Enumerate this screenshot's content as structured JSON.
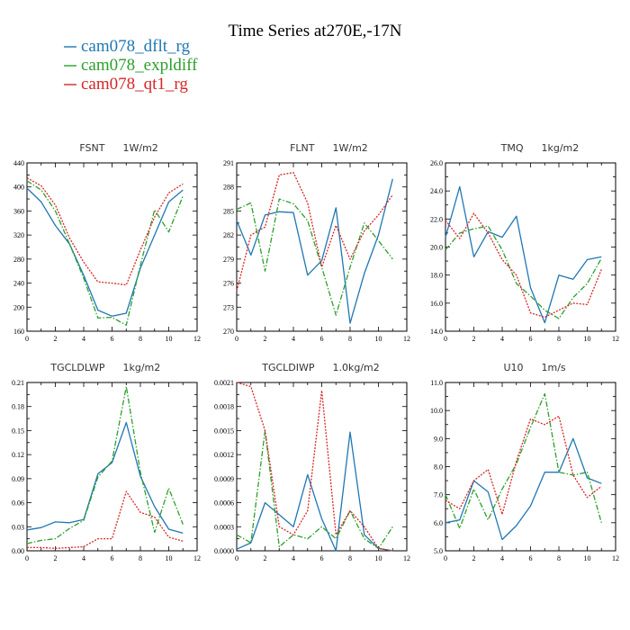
{
  "title": "Time Series at270E,-17N",
  "legend": [
    {
      "name": "cam078_dflt_rg",
      "color": "#1f77b4",
      "dash": "solid"
    },
    {
      "name": "cam078_expldiff",
      "color": "#2ca02c",
      "dash": "dashdot"
    },
    {
      "name": "cam078_qt1_rg",
      "color": "#d62728",
      "dash": "dotted"
    }
  ],
  "chart_data": [
    {
      "type": "line",
      "title_var": "FSNT",
      "title_unit": "1W/m2",
      "x": [
        0,
        1,
        2,
        3,
        4,
        5,
        6,
        7,
        8,
        9,
        10,
        11
      ],
      "xlim": [
        0,
        12
      ],
      "xticks": [
        0,
        2,
        4,
        6,
        8,
        10,
        12
      ],
      "xtick_labels": [
        "0",
        "2",
        "4",
        "6",
        "8",
        "10",
        "12"
      ],
      "ylim": [
        160,
        440
      ],
      "yticks": [
        160,
        200,
        240,
        280,
        320,
        360,
        400,
        440
      ],
      "ytick_labels": [
        "160",
        "200",
        "240",
        "280",
        "320",
        "360",
        "400",
        "440"
      ],
      "series": [
        {
          "name": "cam078_dflt_rg",
          "values": [
            398,
            375,
            336,
            305,
            253,
            195,
            185,
            190,
            265,
            320,
            375,
            395
          ]
        },
        {
          "name": "cam078_expldiff",
          "values": [
            410,
            395,
            360,
            305,
            248,
            182,
            183,
            170,
            270,
            362,
            325,
            385
          ]
        },
        {
          "name": "cam078_qt1_rg",
          "values": [
            415,
            402,
            370,
            315,
            275,
            242,
            240,
            237,
            295,
            350,
            390,
            405
          ]
        }
      ]
    },
    {
      "type": "line",
      "title_var": "FLNT",
      "title_unit": "1W/m2",
      "x": [
        0,
        1,
        2,
        3,
        4,
        5,
        6,
        7,
        8,
        9,
        10,
        11
      ],
      "xlim": [
        0,
        12
      ],
      "xticks": [
        0,
        2,
        4,
        6,
        8,
        10,
        12
      ],
      "xtick_labels": [
        "0",
        "2",
        "4",
        "6",
        "8",
        "10",
        "12"
      ],
      "ylim": [
        270,
        291
      ],
      "yticks": [
        270,
        273,
        276,
        279,
        282,
        285,
        288,
        291
      ],
      "ytick_labels": [
        "270",
        "273",
        "276",
        "279",
        "282",
        "285",
        "288",
        "291"
      ],
      "series": [
        {
          "name": "cam078_dflt_rg",
          "values": [
            283.8,
            279.5,
            284.5,
            284.9,
            284.8,
            277.0,
            278.8,
            285.4,
            271.0,
            277.2,
            282.0,
            289.0
          ]
        },
        {
          "name": "cam078_expldiff",
          "values": [
            285.2,
            286.0,
            277.5,
            286.5,
            285.9,
            283.8,
            278.0,
            272.0,
            278.0,
            283.5,
            281.3,
            279.0
          ]
        },
        {
          "name": "cam078_qt1_rg",
          "values": [
            275.0,
            282.0,
            283.0,
            289.5,
            289.8,
            286.0,
            278.0,
            283.2,
            279.0,
            282.5,
            284.5,
            287.0
          ]
        }
      ]
    },
    {
      "type": "line",
      "title_var": "TMQ",
      "title_unit": "1kg/m2",
      "x": [
        0,
        1,
        2,
        3,
        4,
        5,
        6,
        7,
        8,
        9,
        10,
        11
      ],
      "xlim": [
        0,
        12
      ],
      "xticks": [
        0,
        2,
        4,
        6,
        8,
        10,
        12
      ],
      "xtick_labels": [
        "0",
        "2",
        "4",
        "6",
        "8",
        "10",
        "12"
      ],
      "ylim": [
        14.0,
        26.0
      ],
      "yticks": [
        14,
        16,
        18,
        20,
        22,
        24,
        26
      ],
      "ytick_labels": [
        "14.0",
        "16.0",
        "18.0",
        "20.0",
        "22.0",
        "24.0",
        "26.0"
      ],
      "series": [
        {
          "name": "cam078_dflt_rg",
          "values": [
            20.7,
            24.3,
            19.3,
            21.1,
            20.7,
            22.2,
            17.1,
            14.6,
            18.0,
            17.7,
            19.1,
            19.3
          ]
        },
        {
          "name": "cam078_expldiff",
          "values": [
            19.8,
            21.0,
            21.3,
            21.5,
            19.8,
            17.4,
            16.5,
            15.5,
            14.9,
            16.4,
            17.4,
            19.2
          ]
        },
        {
          "name": "cam078_qt1_rg",
          "values": [
            21.9,
            20.6,
            22.4,
            21.0,
            19.1,
            18.0,
            15.3,
            15.0,
            15.5,
            16.0,
            15.9,
            18.4
          ]
        }
      ]
    },
    {
      "type": "line",
      "title_var": "TGCLDLWP",
      "title_unit": "1kg/m2",
      "x": [
        0,
        1,
        2,
        3,
        4,
        5,
        6,
        7,
        8,
        9,
        10,
        11
      ],
      "xlim": [
        0,
        12
      ],
      "xticks": [
        0,
        2,
        4,
        6,
        8,
        10,
        12
      ],
      "xtick_labels": [
        "0",
        "2",
        "4",
        "6",
        "8",
        "10",
        "12"
      ],
      "ylim": [
        0,
        0.21
      ],
      "yticks": [
        0,
        0.03,
        0.06,
        0.09,
        0.12,
        0.15,
        0.18,
        0.21
      ],
      "ytick_labels": [
        "0.00",
        "0.03",
        "0.06",
        "0.09",
        "0.12",
        "0.15",
        "0.18",
        "0.21"
      ],
      "series": [
        {
          "name": "cam078_dflt_rg",
          "values": [
            0.026,
            0.029,
            0.036,
            0.035,
            0.039,
            0.096,
            0.11,
            0.16,
            0.093,
            0.055,
            0.027,
            0.022
          ]
        },
        {
          "name": "cam078_expldiff",
          "values": [
            0.009,
            0.013,
            0.015,
            0.028,
            0.038,
            0.092,
            0.112,
            0.205,
            0.098,
            0.023,
            0.078,
            0.033
          ]
        },
        {
          "name": "cam078_qt1_rg",
          "values": [
            0.004,
            0.004,
            0.003,
            0.004,
            0.005,
            0.015,
            0.015,
            0.074,
            0.048,
            0.042,
            0.017,
            0.012
          ]
        }
      ]
    },
    {
      "type": "line",
      "title_var": "TGCLDIWP",
      "title_unit": "1.0kg/m2",
      "x": [
        0,
        1,
        2,
        3,
        4,
        5,
        6,
        7,
        8,
        9,
        10,
        11
      ],
      "xlim": [
        0,
        12
      ],
      "xticks": [
        0,
        2,
        4,
        6,
        8,
        10,
        12
      ],
      "xtick_labels": [
        "0",
        "2",
        "4",
        "6",
        "8",
        "10",
        "12"
      ],
      "ylim": [
        0,
        0.0021
      ],
      "yticks": [
        0,
        0.0003,
        0.0006,
        0.0009,
        0.0012,
        0.0015,
        0.0018,
        0.0021
      ],
      "ytick_labels": [
        "0.0000",
        "0.0003",
        "0.0006",
        "0.0009",
        "0.0012",
        "0.0015",
        "0.0018",
        "0.0021"
      ],
      "series": [
        {
          "name": "cam078_dflt_rg",
          "values": [
            2e-05,
            0.0001,
            0.0006,
            0.00045,
            0.0003,
            0.00095,
            0.0004,
            0.0,
            0.00148,
            0.0002,
            3e-05,
            0.0
          ]
        },
        {
          "name": "cam078_expldiff",
          "values": [
            0.0002,
            0.0001,
            0.0015,
            5e-05,
            0.0002,
            0.00015,
            0.0003,
            0.00015,
            0.0005,
            0.00015,
            3e-05,
            0.0003
          ]
        },
        {
          "name": "cam078_qt1_rg",
          "values": [
            0.0021,
            0.00205,
            0.0015,
            0.0003,
            0.0002,
            0.0005,
            0.002,
            0.0002,
            0.0005,
            0.0003,
            3e-05,
            0.0
          ]
        }
      ]
    },
    {
      "type": "line",
      "title_var": "U10",
      "title_unit": "1m/s",
      "x": [
        0,
        1,
        2,
        3,
        4,
        5,
        6,
        7,
        8,
        9,
        10,
        11
      ],
      "xlim": [
        0,
        12
      ],
      "xticks": [
        0,
        2,
        4,
        6,
        8,
        10,
        12
      ],
      "xtick_labels": [
        "0",
        "2",
        "4",
        "6",
        "8",
        "10",
        "12"
      ],
      "ylim": [
        5.0,
        11.0
      ],
      "yticks": [
        5,
        6,
        7,
        8,
        9,
        10,
        11
      ],
      "ytick_labels": [
        "5.0",
        "6.0",
        "7.0",
        "8.0",
        "9.0",
        "10.0",
        "11.0"
      ],
      "series": [
        {
          "name": "cam078_dflt_rg",
          "values": [
            6.0,
            6.1,
            7.5,
            7.1,
            5.4,
            5.9,
            6.6,
            7.8,
            7.8,
            9.0,
            7.6,
            7.4
          ]
        },
        {
          "name": "cam078_expldiff",
          "values": [
            7.0,
            5.8,
            7.2,
            6.1,
            7.2,
            8.1,
            9.4,
            10.6,
            7.8,
            7.7,
            7.8,
            6.0
          ]
        },
        {
          "name": "cam078_qt1_rg",
          "values": [
            6.8,
            6.5,
            7.5,
            7.9,
            6.3,
            8.2,
            9.7,
            9.5,
            9.8,
            7.7,
            6.9,
            7.3
          ]
        }
      ]
    }
  ]
}
